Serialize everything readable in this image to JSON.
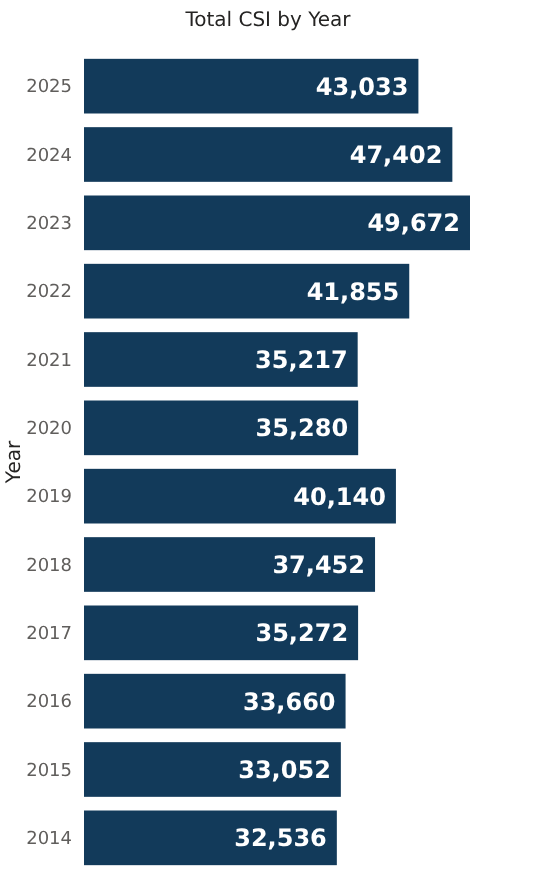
{
  "chart_data": {
    "type": "bar",
    "orientation": "horizontal",
    "title": "Total CSI by Year",
    "ylabel": "Year",
    "categories": [
      "2025",
      "2024",
      "2023",
      "2022",
      "2021",
      "2020",
      "2019",
      "2018",
      "2017",
      "2016",
      "2015",
      "2014"
    ],
    "values": [
      43033,
      47402,
      49672,
      41855,
      35217,
      35280,
      40140,
      37452,
      35272,
      33660,
      33052,
      32536
    ],
    "value_labels": [
      "43,033",
      "47,402",
      "49,672",
      "41,855",
      "35,217",
      "35,280",
      "40,140",
      "37,452",
      "35,272",
      "33,660",
      "33,052",
      "32,536"
    ],
    "color": "#123a5a"
  }
}
